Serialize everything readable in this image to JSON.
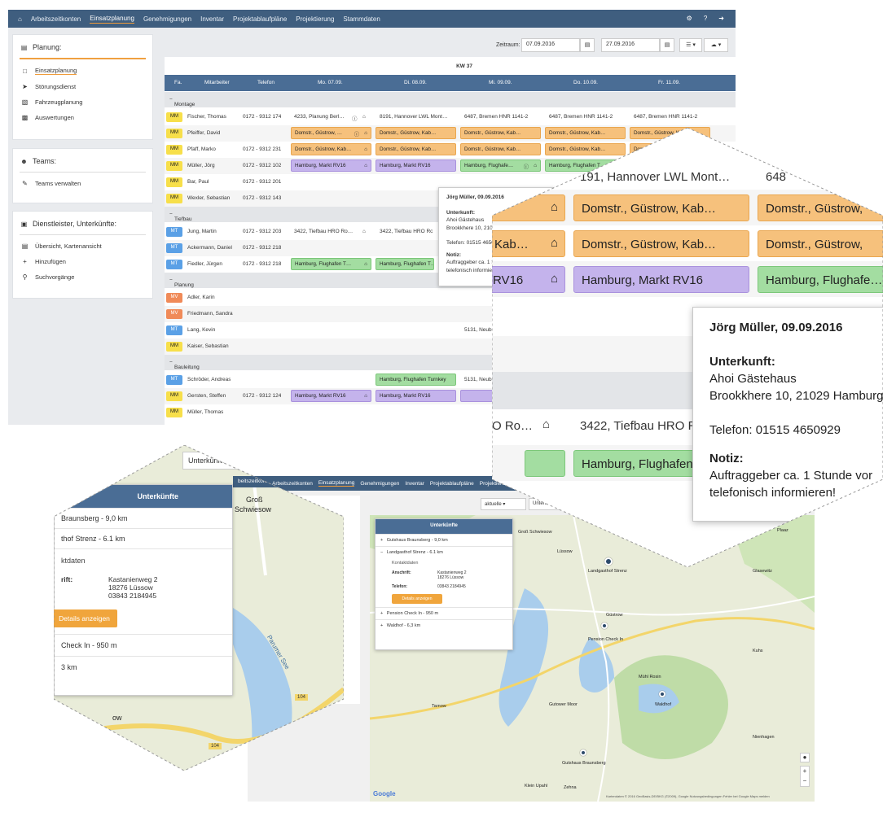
{
  "nav": {
    "items": [
      "Arbeitszeitkonten",
      "Einsatzplanung",
      "Genehmigungen",
      "Inventar",
      "Projektablaufpläne",
      "Projektierung",
      "Stammdaten"
    ],
    "active": "Einsatzplanung"
  },
  "sidebar": {
    "planung": {
      "title": "Planung:",
      "items": [
        "Einsatzplanung",
        "Störungsdienst",
        "Fahrzeugplanung",
        "Auswertungen"
      ]
    },
    "teams": {
      "title": "Teams:",
      "items": [
        "Teams verwalten"
      ]
    },
    "dienst": {
      "title": "Dienstleister, Unterkünfte:",
      "items": [
        "Übersicht, Kartenansicht",
        "Hinzufügen",
        "Suchvorgänge"
      ]
    }
  },
  "toolbar": {
    "zeitraum_label": "Zeitraum:",
    "from": "07.09.2016",
    "to": "27.09.2016"
  },
  "grid": {
    "week": "KW 37",
    "headers": [
      "Fa.",
      "Mitarbeiter",
      "Telefon",
      "Mo. 07.09.",
      "Di. 08.09.",
      "Mi. 09.09.",
      "Do. 10.09.",
      "Fr. 11.09."
    ],
    "groups": {
      "montage": "Montage",
      "tiefbau": "Tiefbau",
      "planung": "Planung",
      "bauleitung": "Bauleitung"
    },
    "rows": [
      {
        "fa": "MM",
        "name": "Fischer, Thomas",
        "tel": "0172 - 9312 174"
      },
      {
        "fa": "MM",
        "name": "Pfeiffer, David",
        "tel": ""
      },
      {
        "fa": "MM",
        "name": "Pfaff, Marko",
        "tel": "0172 - 9312 231"
      },
      {
        "fa": "MM",
        "name": "Müller, Jörg",
        "tel": "0172 - 9312 102"
      },
      {
        "fa": "MM",
        "name": "Bar, Paul",
        "tel": "0172 - 9312 201"
      },
      {
        "fa": "MM",
        "name": "Wexler, Sebastian",
        "tel": "0172 - 9312 143"
      },
      {
        "fa": "MT",
        "name": "Jung, Martin",
        "tel": "0172 - 9312 203"
      },
      {
        "fa": "MT",
        "name": "Ackermann, Daniel",
        "tel": "0172 - 9312 218"
      },
      {
        "fa": "MT",
        "name": "Fiedler, Jürgen",
        "tel": "0172 - 9312 218"
      },
      {
        "fa": "MV",
        "name": "Adler, Karin",
        "tel": ""
      },
      {
        "fa": "MV",
        "name": "Friedmann, Sandra",
        "tel": ""
      },
      {
        "fa": "MT",
        "name": "Lang, Kevin",
        "tel": ""
      },
      {
        "fa": "MM",
        "name": "Kaiser, Sebastian",
        "tel": ""
      },
      {
        "fa": "MT",
        "name": "Schröder, Andreas",
        "tel": ""
      },
      {
        "fa": "MM",
        "name": "Gersten, Steffen",
        "tel": "0172 - 9312 124"
      },
      {
        "fa": "MM",
        "name": "Müller, Thomas",
        "tel": ""
      }
    ],
    "events": {
      "fischer": [
        "4233, Planung Berl…",
        "8191, Hannover LWL Mont…",
        "6487, Bremen HNR 1141-2",
        "6487, Bremen HNR 1141-2",
        "6487, Bremen HNR 1141-2"
      ],
      "domstr": "Domstr., Güstrow, Kab…",
      "domstr_short": "Domstr., Güstrow, …",
      "hamburg_markt": "Hamburg, Markt RV16",
      "hamburg_flug": "Hamburg, Flughafe…",
      "hamburg_flug2": "Hamburg, Flughafen T…",
      "hamburg_turnkey": "Hamburg, Flughafen Turnkey",
      "tiefbau_hro": "3422, Tiefbau HRO Ro…",
      "tiefbau_hro2": "3422, Tiefbau HRO Ro…",
      "neub": "5131, Neub"
    }
  },
  "tooltip": {
    "title": "Jörg Müller, 09.09.2016",
    "unterkunft_label": "Unterkunft:",
    "unterkunft_name": "Ahoi Gästehaus",
    "unterkunft_addr": "Brookkhere 10, 21029 Hamburg",
    "telefon": "Telefon: 01515 4650929",
    "notiz_label": "Notiz:",
    "notiz1": "Auftraggeber ca. 1 Stunde vor",
    "notiz2": "telefonisch informieren!"
  },
  "zoom": {
    "row1a": "191, Hannover LWL Mont…",
    "row1b": "648",
    "domstr": "Domstr., Güstrow, Kab…",
    "domstr_b": "Domstr., Güstrow,",
    "kab": "Kab…",
    "rv16": "RV16",
    "hamburg_markt": "Hamburg, Markt RV16",
    "hamburg_flug": "Hamburg, Flughafe…",
    "ro": "O Ro…",
    "tiefbau": "3422, Tiefbau HRO Ro…",
    "flug_bottom": "Hamburg, Flughafen"
  },
  "map": {
    "search_value": "aktuelle",
    "search2": "Unterkünfte",
    "popup_title": "Unterkünfte",
    "items": [
      "Gutshaus Braunsberg - 9,0 km",
      "Landgasthof Strenz - 6.1 km",
      "Pension Check In - 950 m",
      "Waldhof - 6,3 km"
    ],
    "kontakt": "Kontaktdaten",
    "anschrift_label": "Anschrift:",
    "anschrift1": "Kastanienweg 2",
    "anschrift2": "18276 Lüssow",
    "telefon_label": "Telefon:",
    "telefon": "03843 2184945",
    "details_btn": "Details anzeigen",
    "places": [
      "Groß Schwiesow",
      "Lüssow",
      "Güstrow",
      "Landgasthof Strenz",
      "Pension Check In",
      "Waldhof",
      "Gutshaus Braunsberg",
      "Parumer See",
      "Tarnow",
      "Plaaz",
      "Glasewitz",
      "Gutower Moor",
      "Mühl Rosin",
      "Klein Upahl",
      "Zehna",
      "Kuhs",
      "Nienhagen"
    ],
    "road": "104",
    "hex_popup_title": "Unterkünfte",
    "hex_item1": "Braunsberg - 9,0 km",
    "hex_item2": "thof Strenz - 6.1 km",
    "hex_kontakt": "ktdaten",
    "hex_anschrift": "rift:",
    "hex_item3": "Check In - 950 m",
    "hex_item4": "3 km",
    "hex_nav": "beitszeitkonten",
    "hex_place1": "Groß",
    "hex_place2": "Schwiesow",
    "hex_lake": "Parumer See",
    "hex_town": "ow",
    "google": "Google",
    "copyright": "Kartendaten © 2016 GeoBasis-DE/BKG (©2009), Google   Nutzungsbedingungen   Fehler bei Google Maps melden"
  },
  "colors": {
    "nav": "#3f5e7f",
    "header": "#4a6d95",
    "accent": "#ef9b3a",
    "orange": "#f6c17c",
    "purple": "#c4b3ec",
    "green": "#a3dda1"
  }
}
